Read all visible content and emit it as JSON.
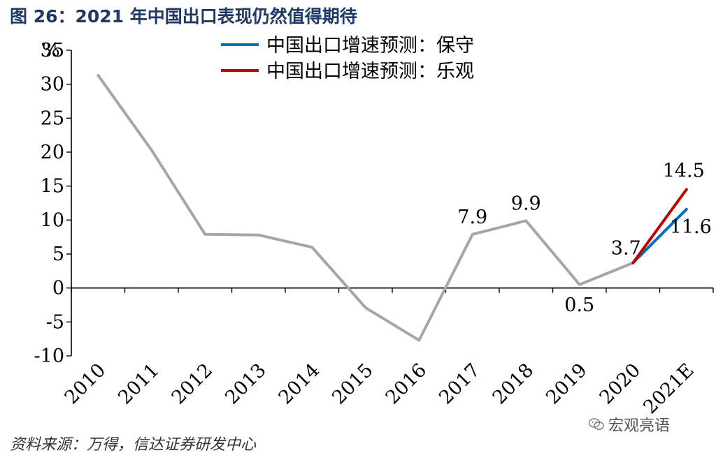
{
  "figure_title": "图 26：2021 年中国出口表现仍然值得期待",
  "source_note": "资料来源：万得，信达证券研发中心",
  "watermark_text": "宏观亮语",
  "watermark_icon": "wechat-icon",
  "chart_data": {
    "type": "line",
    "ylabel": "%",
    "ylim": [
      -10,
      35
    ],
    "yticks": [
      -10,
      -5,
      0,
      5,
      10,
      15,
      20,
      25,
      30,
      35
    ],
    "ytick_labels": [
      "-10",
      "-5",
      "0",
      "5",
      "10",
      "15",
      "20",
      "25",
      "30",
      "35"
    ],
    "categories": [
      "2010",
      "2011",
      "2012",
      "2013",
      "2014",
      "2015",
      "2016",
      "2017",
      "2018",
      "2019",
      "2020",
      "2021E"
    ],
    "legend_position": "top-center",
    "series": [
      {
        "values": [
          31.3,
          20.3,
          7.9,
          7.8,
          6.0,
          -2.9,
          -7.7,
          7.9,
          9.9,
          0.5,
          3.7,
          null
        ],
        "color": "#a6a6a6",
        "legend": false
      },
      {
        "name": "中国出口增速预测：保守",
        "values": [
          null,
          null,
          null,
          null,
          null,
          null,
          null,
          null,
          null,
          null,
          3.7,
          11.6
        ],
        "color": "#0070c0",
        "legend": true
      },
      {
        "name": "中国出口增速预测：乐观",
        "values": [
          null,
          null,
          null,
          null,
          null,
          null,
          null,
          null,
          null,
          null,
          3.7,
          14.5
        ],
        "color": "#c00000",
        "legend": true
      }
    ],
    "annotations": [
      {
        "text": "7.9",
        "category": "2017",
        "value": 7.9
      },
      {
        "text": "9.9",
        "category": "2018",
        "value": 9.9
      },
      {
        "text": "0.5",
        "category": "2019",
        "value": 0.5
      },
      {
        "text": "3.7",
        "category": "2020",
        "value": 3.7
      },
      {
        "text": "14.5",
        "category": "2021E",
        "value": 14.5
      },
      {
        "text": "11.6",
        "category": "2021E",
        "value": 11.6
      }
    ]
  }
}
